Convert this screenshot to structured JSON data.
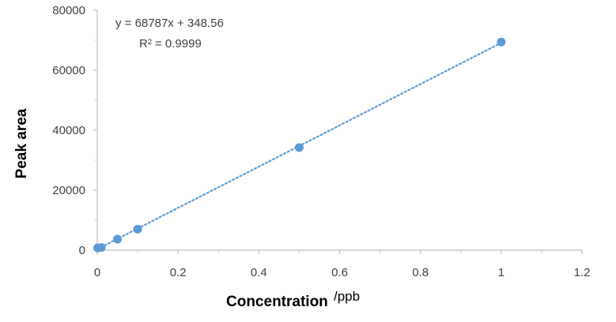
{
  "chart_data": {
    "type": "scatter",
    "xlabel": "Concentration",
    "xlabel_unit": "/ppb",
    "ylabel": "Peak area",
    "xlim": [
      0,
      1.2
    ],
    "ylim": [
      0,
      80000
    ],
    "x_ticks": [
      "0",
      "0.2",
      "0.4",
      "0.6",
      "0.8",
      "1",
      "1.2"
    ],
    "y_ticks": [
      "0",
      "20000",
      "40000",
      "60000",
      "80000"
    ],
    "grid": false,
    "legend": "none",
    "point_color": "#5b9bd5",
    "trendline_color": "#5b9bd5",
    "points": [
      {
        "x": 0.001,
        "y": 750
      },
      {
        "x": 0.01,
        "y": 900
      },
      {
        "x": 0.05,
        "y": 3700
      },
      {
        "x": 0.1,
        "y": 7000
      },
      {
        "x": 0.5,
        "y": 34200
      },
      {
        "x": 1.0,
        "y": 69400
      }
    ],
    "trendline": {
      "type": "linear",
      "slope": 68787,
      "intercept": 348.56,
      "style": "dotted"
    },
    "annotations": {
      "equation": "y = 68787x + 348.56",
      "r_squared": "R² = 0.9999"
    }
  }
}
